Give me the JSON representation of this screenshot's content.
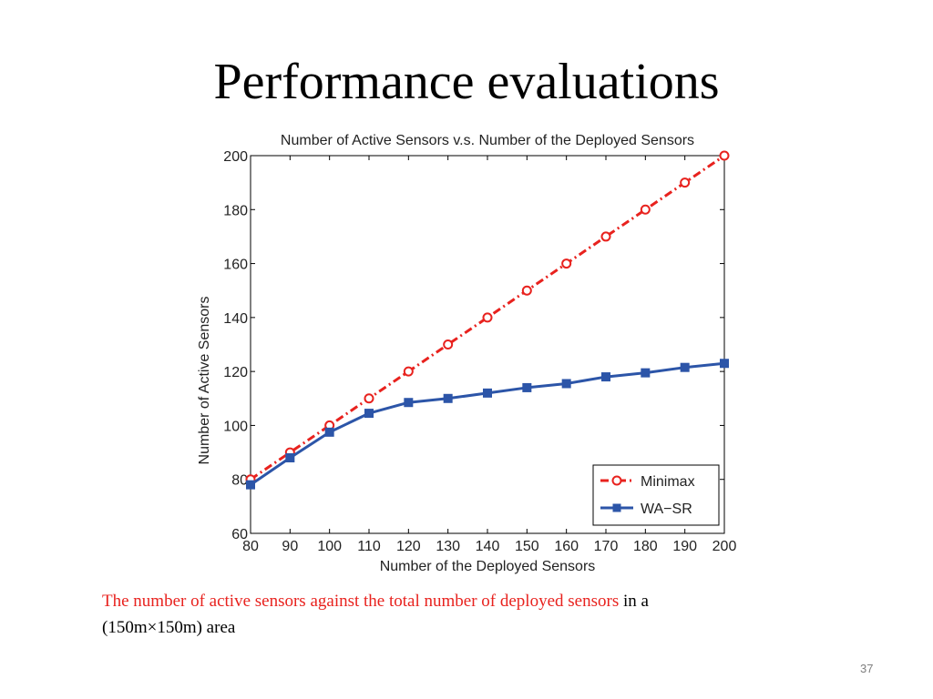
{
  "slide": {
    "title": "Performance evaluations",
    "caption_highlight": "The number of active sensors against the total number of deployed sensors",
    "caption_rest_1": " in a",
    "caption_rest_2": "(150m×150m) area",
    "slide_number": "37"
  },
  "chart_data": {
    "type": "line",
    "title": "Number of Active Sensors v.s. Number of the Deployed Sensors",
    "xlabel": "Number of the Deployed Sensors",
    "ylabel": "Number of Active Sensors",
    "xlim": [
      80,
      200
    ],
    "ylim": [
      60,
      200
    ],
    "x_ticks": [
      80,
      90,
      100,
      110,
      120,
      130,
      140,
      150,
      160,
      170,
      180,
      190,
      200
    ],
    "y_ticks": [
      60,
      80,
      100,
      120,
      140,
      160,
      180,
      200
    ],
    "grid": false,
    "legend_position": "bottom-right",
    "x": [
      80,
      90,
      100,
      110,
      120,
      130,
      140,
      150,
      160,
      170,
      180,
      190,
      200
    ],
    "series": [
      {
        "name": "Minimax",
        "values": [
          80,
          90,
          100,
          110,
          120,
          130,
          140,
          150,
          160,
          170,
          180,
          190,
          200
        ],
        "color": "#e8221e",
        "line_style": "dash-dot",
        "marker": "circle"
      },
      {
        "name": "WA−SR",
        "values": [
          78,
          88,
          97.5,
          104.5,
          108.5,
          110,
          112,
          114,
          115.5,
          118,
          119.5,
          121.5,
          123
        ],
        "color": "#2c55a8",
        "line_style": "solid",
        "marker": "square"
      }
    ]
  }
}
